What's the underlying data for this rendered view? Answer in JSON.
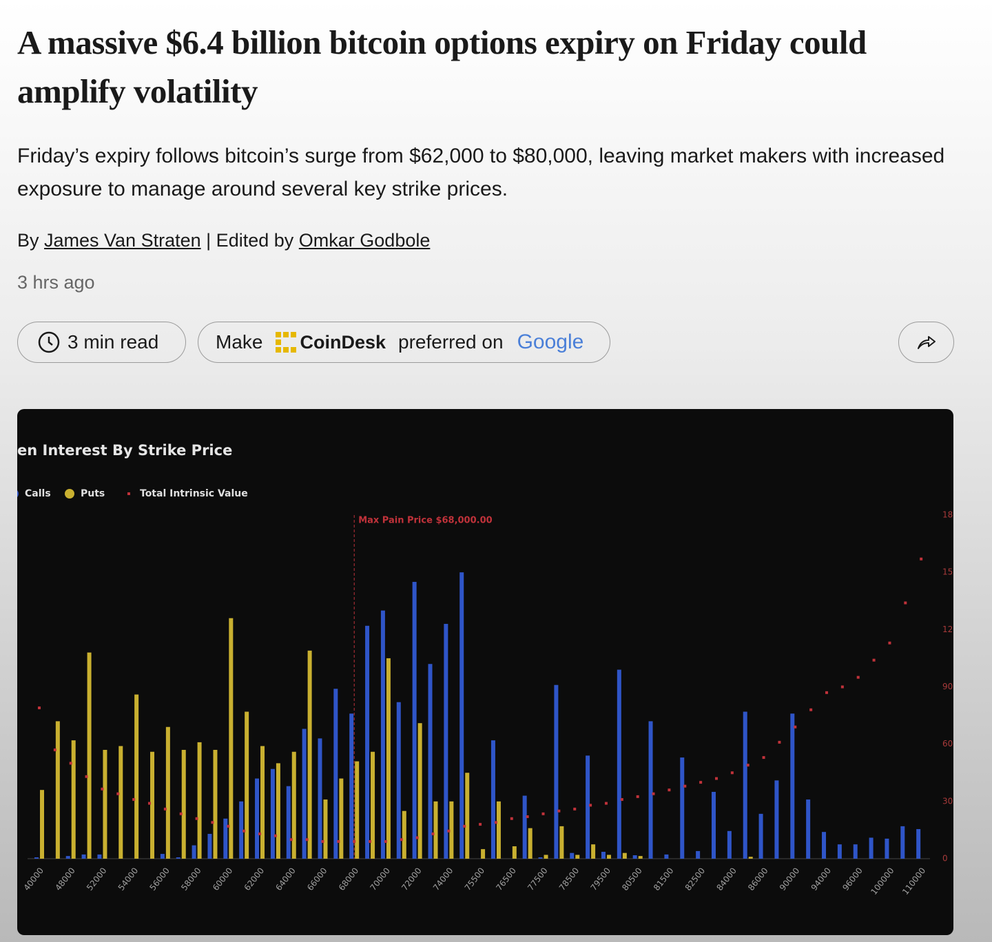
{
  "header": {
    "title": "A massive $6.4 billion bitcoin options expiry on Friday could amplify volatility",
    "subtitle": "Friday’s expiry follows bitcoin’s surge from $62,000 to $80,000, leaving market makers with increased exposure to manage around several key strike prices.",
    "byline": {
      "prefix": "By",
      "author": "James Van Straten",
      "separator": "| Edited by",
      "editor": "Omkar Godbole"
    },
    "time": "3 hrs ago"
  },
  "actions": {
    "read_time": "3 min read",
    "make": "Make",
    "brand": "CoinDesk",
    "preferred": "preferred on",
    "google": "Google"
  },
  "chart_data": {
    "type": "bar",
    "title": "en Interest By Strike Price",
    "categories": [
      "40000",
      null,
      "48000",
      null,
      "52000",
      null,
      "54000",
      null,
      "56000",
      null,
      "58000",
      null,
      "60000",
      null,
      "62000",
      null,
      "64000",
      null,
      "66000",
      null,
      "68000",
      null,
      "70000",
      null,
      "72000",
      null,
      "74000",
      null,
      "75500",
      null,
      "76500",
      null,
      "77500",
      null,
      "78500",
      null,
      "79500",
      null,
      "80500",
      null,
      "81500",
      null,
      "82500",
      null,
      "84000",
      null,
      "86000",
      null,
      "90000",
      null,
      "94000",
      null,
      "96000",
      null,
      "100000",
      null,
      "110000"
    ],
    "ylim": [
      0,
      180
    ],
    "y2lim": [
      0,
      180
    ],
    "y2ticks": [
      0,
      30,
      60,
      90,
      {
        "value": 120,
        "label": "12"
      },
      {
        "value": 150,
        "label": "15"
      },
      {
        "value": 180,
        "label": "18"
      }
    ],
    "annotation": {
      "text": "Max Pain Price $68,000.00",
      "x": "68000",
      "color": "#c0323a"
    },
    "series": [
      {
        "name": "Calls",
        "color": "#2f55c8",
        "values": [
          0.7,
          0,
          1.4,
          2.2,
          2.2,
          0,
          0,
          0,
          2.5,
          0.7,
          7,
          13,
          21,
          30,
          42,
          47,
          38,
          68,
          63,
          89,
          76,
          122,
          130,
          82,
          145,
          102,
          123,
          150,
          0,
          62,
          0,
          33,
          0.7,
          91,
          3,
          54,
          3.6,
          99,
          1.8,
          72,
          2.2,
          53,
          4,
          35,
          14.5,
          77,
          23.5,
          41,
          76,
          31,
          14,
          7.5,
          7.5,
          11,
          10.5,
          17,
          15.5
        ]
      },
      {
        "name": "Puts",
        "color": "#c9b030",
        "values": [
          36,
          72,
          62,
          108,
          57,
          59,
          86,
          56,
          69,
          57,
          61,
          57,
          126,
          77,
          59,
          50,
          56,
          109,
          31,
          42,
          51,
          56,
          105,
          25,
          71,
          30,
          30,
          45,
          5,
          30,
          6.5,
          16,
          2,
          17,
          2,
          7.5,
          2,
          3,
          1.4,
          0,
          0,
          0,
          0,
          0,
          0,
          1,
          0,
          0,
          0,
          0,
          0,
          0,
          0,
          0,
          0,
          0,
          0
        ]
      },
      {
        "name": "Total Intrinsic Value",
        "type": "scatter",
        "axis": "y2",
        "color": "#c0323a",
        "values": [
          79,
          57,
          50,
          43,
          36.5,
          34,
          31,
          29,
          26,
          23.5,
          21,
          19,
          17,
          14.5,
          13,
          12,
          10,
          10,
          9,
          9,
          9,
          9,
          9,
          10,
          11,
          13,
          14.5,
          17,
          18,
          19,
          21,
          22,
          23.5,
          25,
          26,
          28,
          29,
          31,
          32.5,
          34,
          36,
          38,
          40,
          42,
          45,
          49,
          53,
          61,
          69,
          78,
          87,
          90,
          95,
          104,
          113,
          134,
          157
        ]
      }
    ]
  }
}
